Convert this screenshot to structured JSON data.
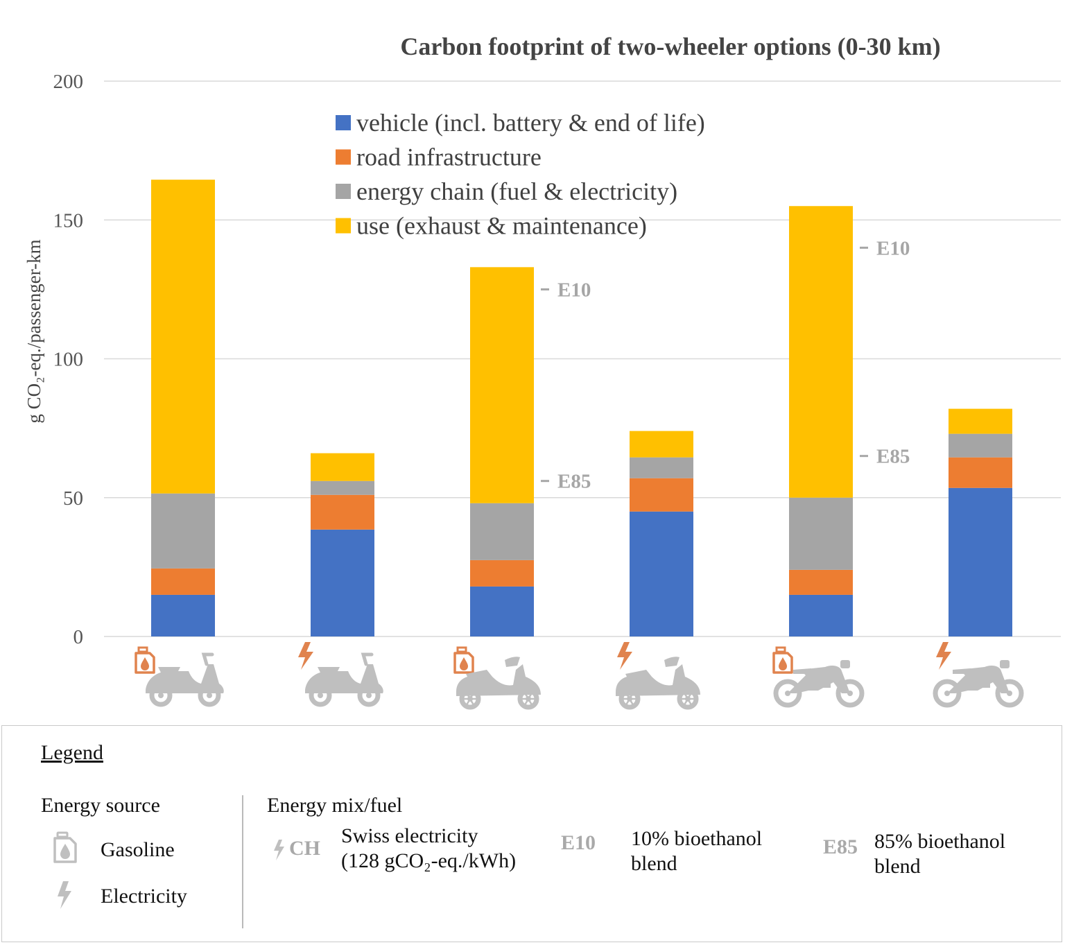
{
  "colors": {
    "vehicle": "#4472C4",
    "road": "#ED7D31",
    "energy": "#A5A5A5",
    "use": "#FFC000",
    "grid": "#d9d9d9",
    "icon_orange": "#E0834E",
    "icon_gray": "#bfbfbf",
    "annotation": "#a6a6a6"
  },
  "chart_data": {
    "type": "bar",
    "stacked": true,
    "title": "Carbon footprint of two-wheeler options (0-30 km)",
    "ylabel": "g CO₂-eq./passenger-km",
    "ylim": [
      0,
      200
    ],
    "yticks": [
      "0",
      "50",
      "100",
      "150",
      "200"
    ],
    "grid": true,
    "legend_position": "top-center",
    "categories": [
      "gasoline-scooter",
      "electric-scooter",
      "gasoline-maxiscooter",
      "electric-maxiscooter",
      "gasoline-motorcycle",
      "electric-motorcycle"
    ],
    "series": [
      {
        "name": "vehicle (incl. battery & end of life)",
        "color_key": "vehicle",
        "values": [
          15,
          38.5,
          18,
          45,
          15,
          53.5
        ]
      },
      {
        "name": "road infrastructure",
        "color_key": "road",
        "values": [
          9.5,
          12.5,
          9.5,
          12,
          9,
          11
        ]
      },
      {
        "name": "energy chain (fuel & electricity)",
        "color_key": "energy",
        "values": [
          27,
          5,
          20.5,
          7.5,
          26,
          8.5
        ]
      },
      {
        "name": "use (exhaust & maintenance)",
        "color_key": "use",
        "values": [
          113,
          10,
          85,
          9.5,
          105,
          9
        ]
      }
    ],
    "annotations": [
      {
        "bar": 2,
        "label": "E10",
        "value": 125
      },
      {
        "bar": 2,
        "label": "E85",
        "value": 56
      },
      {
        "bar": 4,
        "label": "E10",
        "value": 140
      },
      {
        "bar": 4,
        "label": "E85",
        "value": 65
      }
    ],
    "category_icons": [
      {
        "energy_source": "gasoline",
        "vehicle": "scooter"
      },
      {
        "energy_source": "electricity",
        "vehicle": "scooter"
      },
      {
        "energy_source": "gasoline",
        "vehicle": "maxiscooter"
      },
      {
        "energy_source": "electricity",
        "vehicle": "maxiscooter"
      },
      {
        "energy_source": "gasoline",
        "vehicle": "motorcycle"
      },
      {
        "energy_source": "electricity",
        "vehicle": "motorcycle"
      }
    ]
  },
  "legend": {
    "title": "Legend",
    "energy_source": {
      "heading": "Energy source",
      "items": [
        {
          "icon": "fuel-canister-icon",
          "label": "Gasoline"
        },
        {
          "icon": "lightning-icon",
          "label": "Electricity"
        }
      ]
    },
    "energy_mix": {
      "heading": "Energy mix/fuel",
      "items": [
        {
          "code": "CH",
          "icon": "lightning-icon",
          "line1": "Swiss electricity",
          "line2": "(128 gCO₂-eq./kWh)"
        },
        {
          "code": "E10",
          "line1": "10% bioethanol",
          "line2": "blend"
        },
        {
          "code": "E85",
          "line1": "85% bioethanol",
          "line2": "blend"
        }
      ]
    }
  }
}
